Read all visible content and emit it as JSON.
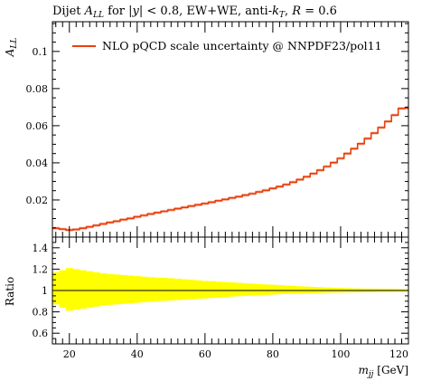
{
  "chart_data": [
    {
      "type": "line",
      "title": "Dijet A_LL for |y| < 0.8, EW+WE, anti-k_T, R = 0.6",
      "title_parts": {
        "prefix": "Dijet ",
        "sym_A": "A",
        "sym_A_sub": "LL",
        "mid": " for |",
        "sym_y": "y",
        "mid2": "| < 0.8, EW+WE, anti-",
        "sym_k": "k",
        "sym_k_sub": "T",
        "mid3": ", ",
        "sym_R": "R",
        "suffix": " = 0.6"
      },
      "ylabel": "A_LL",
      "ylabel_parts": {
        "main": "A",
        "sub": "LL"
      },
      "xlim": [
        15,
        120
      ],
      "ylim": [
        0,
        0.116
      ],
      "ytick_labels": [
        "0.02",
        "0.04",
        "0.06",
        "0.08",
        "0.1"
      ],
      "yticks": [
        0.02,
        0.04,
        0.06,
        0.08,
        0.1
      ],
      "legend": {
        "position": "top-left",
        "label": "NLO pQCD scale uncertainty @ NNPDF23/pol11"
      },
      "series": [
        {
          "name": "NLO pQCD scale uncertainty @ NNPDF23/pol11",
          "color": "#e8400c",
          "style": "step",
          "bin_edges": [
            15,
            17,
            19,
            21,
            23,
            25,
            27,
            29,
            31,
            33,
            35,
            37,
            39,
            41,
            43,
            45,
            47,
            49,
            51,
            53,
            55,
            57,
            59,
            61,
            63,
            65,
            67,
            69,
            71,
            73,
            75,
            77,
            79,
            81,
            83,
            85,
            87,
            89,
            91,
            93,
            95,
            97,
            99,
            101,
            103,
            105,
            107,
            109,
            111,
            113,
            115,
            117,
            119,
            120
          ],
          "values": [
            0.0048,
            0.0043,
            0.0038,
            0.0041,
            0.0048,
            0.0055,
            0.0063,
            0.0071,
            0.0079,
            0.0086,
            0.0094,
            0.0101,
            0.0109,
            0.0117,
            0.0125,
            0.0132,
            0.0139,
            0.0146,
            0.0153,
            0.016,
            0.0167,
            0.0174,
            0.0181,
            0.0188,
            0.0196,
            0.0203,
            0.0211,
            0.0218,
            0.0226,
            0.0234,
            0.0243,
            0.0252,
            0.0262,
            0.0272,
            0.0283,
            0.0296,
            0.031,
            0.0325,
            0.0342,
            0.036,
            0.038,
            0.0401,
            0.0424,
            0.045,
            0.0476,
            0.0503,
            0.0531,
            0.056,
            0.059,
            0.0623,
            0.0657,
            0.0693,
            0.0695
          ]
        }
      ]
    },
    {
      "type": "area",
      "ylabel": "Ratio",
      "xlabel": "m_jj [GeV]",
      "xlabel_parts": {
        "main": "m",
        "sub": "jj",
        "unit": " [GeV]"
      },
      "xlim": [
        15,
        120
      ],
      "ylim": [
        0.5,
        1.5
      ],
      "ytick_labels": [
        "0.6",
        "0.8",
        "1",
        "1.2",
        "1.4"
      ],
      "yticks": [
        0.6,
        0.8,
        1.0,
        1.2,
        1.4
      ],
      "xticks": [
        20,
        40,
        60,
        80,
        100,
        120
      ],
      "xtick_labels": [
        "20",
        "40",
        "60",
        "80",
        "100",
        "120"
      ],
      "reference_line": 1.0,
      "band_color": "#ffff00",
      "series": [
        {
          "name": "scale uncertainty band",
          "bin_edges": [
            15,
            17,
            19,
            21,
            23,
            25,
            27,
            29,
            31,
            33,
            35,
            37,
            39,
            41,
            43,
            45,
            47,
            49,
            51,
            53,
            55,
            57,
            59,
            61,
            63,
            65,
            67,
            69,
            71,
            73,
            75,
            77,
            79,
            81,
            83,
            85,
            87,
            89,
            91,
            93,
            95,
            97,
            99,
            101,
            103,
            105,
            107,
            109,
            111,
            113,
            115,
            117,
            119,
            120
          ],
          "upper": [
            1.17,
            1.19,
            1.21,
            1.2,
            1.19,
            1.18,
            1.17,
            1.16,
            1.155,
            1.15,
            1.145,
            1.14,
            1.135,
            1.13,
            1.125,
            1.12,
            1.118,
            1.115,
            1.11,
            1.105,
            1.1,
            1.095,
            1.09,
            1.087,
            1.083,
            1.08,
            1.076,
            1.072,
            1.068,
            1.064,
            1.06,
            1.057,
            1.054,
            1.05,
            1.047,
            1.044,
            1.04,
            1.037,
            1.034,
            1.031,
            1.028,
            1.026,
            1.024,
            1.022,
            1.02,
            1.019,
            1.018,
            1.017,
            1.016,
            1.015,
            1.014,
            1.013,
            1.013
          ],
          "lower": [
            0.87,
            0.84,
            0.81,
            0.82,
            0.83,
            0.84,
            0.85,
            0.86,
            0.865,
            0.87,
            0.875,
            0.88,
            0.885,
            0.89,
            0.895,
            0.9,
            0.903,
            0.906,
            0.91,
            0.914,
            0.918,
            0.922,
            0.926,
            0.93,
            0.934,
            0.938,
            0.942,
            0.946,
            0.95,
            0.953,
            0.956,
            0.959,
            0.962,
            0.965,
            0.967,
            0.969,
            0.971,
            0.973,
            0.975,
            0.977,
            0.979,
            0.98,
            0.981,
            0.982,
            0.983,
            0.984,
            0.985,
            0.986,
            0.987,
            0.988,
            0.988,
            0.989,
            0.989
          ]
        }
      ]
    }
  ]
}
